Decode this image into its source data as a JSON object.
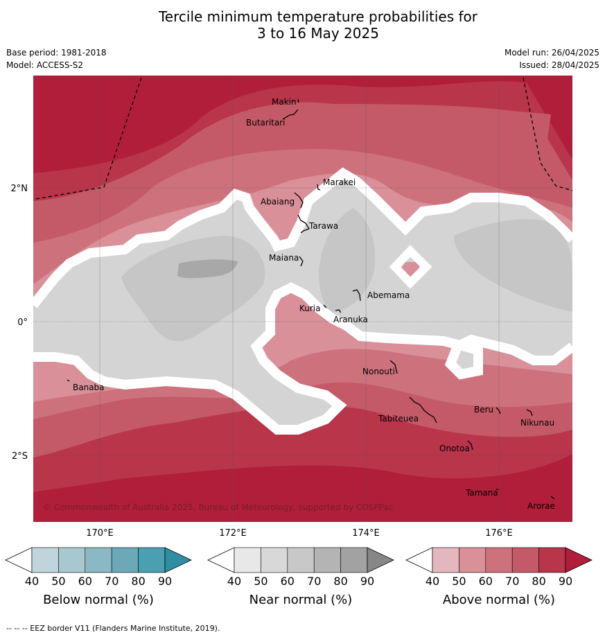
{
  "title_line1": "Tercile minimum temperature probabilities for",
  "title_line2": "3 to 16 May 2025",
  "base_period": "Base period: 1981-2018",
  "model": "Model: ACCESS-S2",
  "model_run": "Model run: 26/04/2025",
  "issued": "Issued: 28/04/2025",
  "copyright": "© Commonwealth of Australia 2025, Bureau of Meteorology, supported by COSPPac",
  "footer": "--  --  -- EEZ border V11 (Flanders Marine Institute, 2019).",
  "axes": {
    "x_ticks": [
      "170°E",
      "172°E",
      "174°E",
      "176°E"
    ],
    "y_ticks": [
      "2°N",
      "0°",
      "2°S"
    ]
  },
  "places": [
    "Makin",
    "Butaritari",
    "Marakei",
    "Abaiang",
    "Tarawa",
    "Maiana",
    "Abemama",
    "Kuria",
    "Aranuka",
    "Nonouti",
    "Banaba",
    "Tabiteuea",
    "Beru",
    "Nikunau",
    "Onotoa",
    "Tamana",
    "Arorae"
  ],
  "colorbars": [
    {
      "label": "Below normal (%)",
      "ticks": [
        "40",
        "50",
        "60",
        "70",
        "80",
        "90"
      ],
      "colors": [
        "#ffffff",
        "#bfd5db",
        "#a7c8cf",
        "#8ab8c3",
        "#6aaab8",
        "#4aa0b0",
        "#2e8fa3"
      ]
    },
    {
      "label": "Near normal (%)",
      "ticks": [
        "40",
        "50",
        "60",
        "70",
        "80",
        "90"
      ],
      "colors": [
        "#ffffff",
        "#e8e8e8",
        "#d8d8d8",
        "#c8c8c8",
        "#b4b4b4",
        "#a2a2a2",
        "#878787"
      ]
    },
    {
      "label": "Above normal (%)",
      "ticks": [
        "40",
        "50",
        "60",
        "70",
        "80",
        "90"
      ],
      "colors": [
        "#ffffff",
        "#e3b7bd",
        "#d99099",
        "#cd727d",
        "#c45a67",
        "#b8354a",
        "#b01e3a"
      ]
    }
  ]
}
